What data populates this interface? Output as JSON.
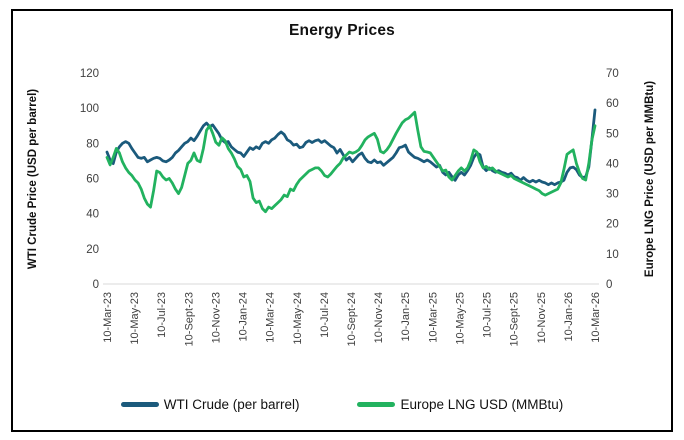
{
  "title": "Energy Prices",
  "left_axis": {
    "label": "WTI Crude Price (USD per barrel)",
    "ticks": [
      120,
      100,
      80,
      60,
      40,
      20,
      0
    ],
    "min": 0,
    "max": 120
  },
  "right_axis": {
    "label": "Europe LNG Price (USD per MMBtu)",
    "ticks": [
      70,
      60,
      50,
      40,
      30,
      20,
      10,
      0
    ],
    "min": 0,
    "max": 70
  },
  "legend": [
    {
      "label": "WTI Crude (per barrel)",
      "color": "#1b5a7c"
    },
    {
      "label": "Europe LNG USD (MMBtu)",
      "color": "#22b25f"
    }
  ],
  "colors": {
    "wti_line": "#1b5a7c",
    "lng_line": "#22b25f",
    "axis_line": "#d9d9d9",
    "tick_text": "#404040",
    "frame_border": "#000000"
  },
  "chart_data": {
    "type": "line",
    "title": "Energy Prices",
    "x_unit": "weekly",
    "x_range": [
      "10-Mar-23",
      "10-Mar-26"
    ],
    "x_tick_labels": [
      "10-Mar-23",
      "10-May-23",
      "10-Jul-23",
      "10-Sept-23",
      "10-Nov-23",
      "10-Jan-24",
      "10-Mar-24",
      "10-May-24",
      "10-Jul-24",
      "10-Sept-24",
      "10-Nov-24",
      "10-Jan-25",
      "10-Mar-25",
      "10-May-25",
      "10-Jul-25",
      "10-Sept-25",
      "10-Nov-25",
      "10-Jan-26",
      "10-Mar-26"
    ],
    "left_ylabel": "WTI Crude Price (USD per barrel)",
    "right_ylabel": "Europe LNG Price (USD per MMBtu)",
    "left_ylim": [
      0,
      120
    ],
    "right_ylim": [
      0,
      70
    ],
    "grid": false,
    "legend_position": "bottom",
    "series": [
      {
        "name": "WTI Crude (per barrel)",
        "axis": "left",
        "color": "#1b5a7c",
        "values": [
          75,
          70.5,
          68.5,
          75,
          78,
          80,
          81,
          80,
          77,
          74.5,
          72,
          71.5,
          72,
          69.5,
          70.5,
          71.5,
          72,
          71.5,
          70,
          69.5,
          70.5,
          72,
          74.5,
          76,
          78,
          80,
          81,
          83,
          81.5,
          84,
          87,
          90,
          91.5,
          89.5,
          90.5,
          88,
          85.5,
          82,
          80.5,
          81,
          78,
          76.5,
          75,
          74.5,
          72.5,
          75,
          77.5,
          76.5,
          78,
          77,
          80,
          81,
          80,
          82,
          83,
          85,
          86.5,
          85,
          82,
          81,
          79,
          79.5,
          77.5,
          78,
          80.5,
          81.5,
          80.5,
          81.5,
          82,
          80.5,
          81.5,
          80,
          78.5,
          77.5,
          74.5,
          76.5,
          73.5,
          70.5,
          72,
          69.5,
          71.5,
          73.5,
          74.5,
          71.5,
          69.5,
          69,
          70.5,
          69,
          69.5,
          67.5,
          69,
          70.5,
          72,
          74.5,
          77.5,
          78,
          79,
          75,
          73.5,
          72,
          71.5,
          70.5,
          69.5,
          70.5,
          69.5,
          68,
          66.5,
          67.5,
          63.5,
          62,
          63.5,
          61,
          59,
          62,
          63.5,
          62,
          64.5,
          67.5,
          72,
          74.5,
          73.5,
          66.5,
          64.5,
          66,
          64.5,
          63.5,
          64.5,
          63.5,
          63,
          62,
          63,
          61,
          60.5,
          59,
          60.5,
          59,
          58,
          59,
          58,
          59,
          58,
          57.5,
          56.5,
          57.5,
          56.5,
          57.5,
          58,
          59,
          63.5,
          66,
          66.5,
          65,
          62,
          60.5,
          61,
          66.5,
          82,
          99
        ]
      },
      {
        "name": "Europe LNG USD (MMBtu)",
        "axis": "right",
        "color": "#22b25f",
        "values": [
          42,
          39.5,
          42,
          45,
          43.5,
          40.5,
          38.5,
          37,
          36,
          34.5,
          33.5,
          31.5,
          28.5,
          26.5,
          25.5,
          31,
          37.5,
          37,
          35.5,
          34.5,
          35,
          33.5,
          31.5,
          30,
          32,
          36,
          40,
          41,
          43.5,
          41,
          40.5,
          45,
          51,
          52.5,
          50,
          47,
          46,
          48.5,
          47.5,
          45,
          43.5,
          41.5,
          39,
          38,
          35.5,
          36,
          34,
          28.5,
          27,
          27.5,
          25,
          24,
          25.5,
          25,
          26,
          27,
          28,
          29.5,
          29,
          31.5,
          31,
          33,
          34.5,
          35.5,
          36.5,
          37.5,
          38,
          38.5,
          38.5,
          37.5,
          36,
          35.5,
          36.5,
          37.8,
          39,
          40,
          41.8,
          42.8,
          43.8,
          43.4,
          43.8,
          44.5,
          46,
          47.8,
          48.8,
          49.4,
          50,
          48,
          44,
          43.5,
          44.5,
          46,
          48,
          50,
          51.8,
          53.5,
          54.5,
          55,
          56,
          57,
          51,
          45.5,
          44,
          43.8,
          43.5,
          42,
          40.5,
          39,
          37.5,
          37.8,
          35.5,
          34.5,
          36,
          37.5,
          38.5,
          37.5,
          38.5,
          41,
          44.5,
          43.8,
          40.5,
          38.5,
          39,
          38,
          38.5,
          37.5,
          37,
          36.5,
          36,
          35.5,
          36,
          35,
          34.5,
          34,
          33.5,
          33,
          32.5,
          32,
          31.5,
          31,
          30,
          29.5,
          30,
          30.5,
          31,
          31.5,
          33.5,
          38,
          43,
          43.8,
          44.5,
          40,
          37,
          35,
          34.5,
          40,
          47.8,
          52.5
        ]
      }
    ]
  }
}
